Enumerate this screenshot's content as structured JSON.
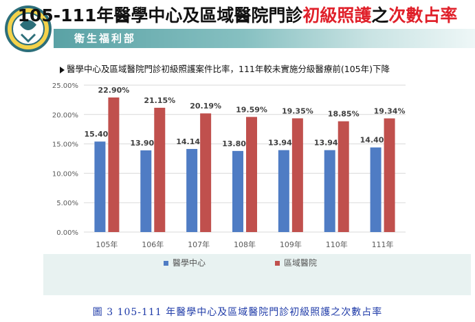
{
  "header": {
    "title_black_1": "105-111年醫學中心及區域醫院門診",
    "title_red_1": "初級照護",
    "title_black_2": "之",
    "title_red_2": "次數占率",
    "department": "衛生福利部"
  },
  "note": "醫學中心及區域醫院門診初級照護案件比率，111年較未實施分級醫療前(105年)下降",
  "caption": "圖 3 105-111 年醫學中心及區域醫院門診初級照護之次數占率",
  "colors": {
    "series1": "#4f7cc4",
    "series2": "#c0504d",
    "accent_red": "#e0202a",
    "caption_blue": "#1f3ba8"
  },
  "chart_data": {
    "type": "bar",
    "categories": [
      "105年",
      "106年",
      "107年",
      "108年",
      "109年",
      "110年",
      "111年"
    ],
    "series": [
      {
        "name": "醫學中心",
        "values": [
          15.4,
          13.9,
          14.14,
          13.8,
          13.94,
          13.94,
          14.4
        ],
        "labels": [
          "15.40%",
          "13.90%",
          "14.14%",
          "13.80%",
          "13.94%",
          "13.94%",
          "14.40%"
        ]
      },
      {
        "name": "區域醫院",
        "values": [
          22.9,
          21.15,
          20.19,
          19.59,
          19.35,
          18.85,
          19.34
        ],
        "labels": [
          "22.90%",
          "21.15%",
          "20.19%",
          "19.59%",
          "19.35%",
          "18.85%",
          "19.34%"
        ]
      }
    ],
    "yticks": [
      "0.00%",
      "5.00%",
      "10.00%",
      "15.00%",
      "20.00%",
      "25.00%"
    ],
    "ylim": [
      0,
      25
    ],
    "grid": true,
    "legend_position": "bottom"
  }
}
